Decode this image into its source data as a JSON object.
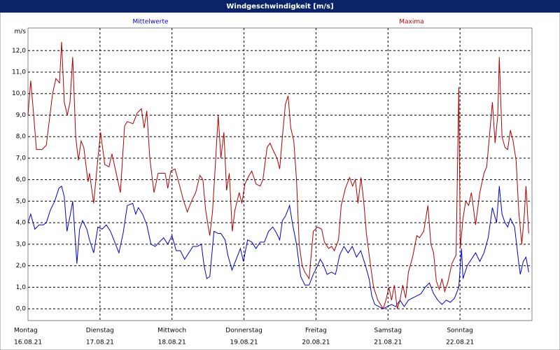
{
  "chart_data": {
    "type": "line",
    "title": "Windgeschwindigkeit [m/s]",
    "ylabel": "m/s",
    "xlim": [
      0,
      168
    ],
    "ylim": [
      -0.55,
      13.05
    ],
    "grid": true,
    "xticks": [
      {
        "value": 0,
        "label": "Montag"
      },
      {
        "value": 24,
        "label": "Dienstag"
      },
      {
        "value": 48,
        "label": "Mittwoch"
      },
      {
        "value": 72,
        "label": "Donnerstag"
      },
      {
        "value": 96,
        "label": "Freitag"
      },
      {
        "value": 120,
        "label": "Samstag"
      },
      {
        "value": 144,
        "label": "Sonntag"
      }
    ],
    "xtick_dates": [
      "16.08.21",
      "17.08.21",
      "18.08.21",
      "19.08.21",
      "20.08.21",
      "21.08.21",
      "22.08.21"
    ],
    "yticks": [
      {
        "value": 0,
        "label": "0,0"
      },
      {
        "value": 1,
        "label": "1,0"
      },
      {
        "value": 2,
        "label": "2,0"
      },
      {
        "value": 3,
        "label": "3,0"
      },
      {
        "value": 4,
        "label": "4,0"
      },
      {
        "value": 5,
        "label": "5,0"
      },
      {
        "value": 6,
        "label": "6,0"
      },
      {
        "value": 7,
        "label": "7,0"
      },
      {
        "value": 8,
        "label": "8,0"
      },
      {
        "value": 9,
        "label": "9,0"
      },
      {
        "value": 10,
        "label": "10,0"
      },
      {
        "value": 11,
        "label": "11,0"
      },
      {
        "value": 12,
        "label": "12,0"
      }
    ],
    "series": [
      {
        "name": "Mittelwerte",
        "color": "#0000cc",
        "x": [
          0,
          0.9,
          2.3,
          3.7,
          5.1,
          6.1,
          7.5,
          8.9,
          10.3,
          11.2,
          12.1,
          13.0,
          14.0,
          14.9,
          16.3,
          17.2,
          18.2,
          19.6,
          20.5,
          21.9,
          23.3,
          24.7,
          26.1,
          27.5,
          28.9,
          30.3,
          31.7,
          33.1,
          34.9,
          35.9,
          36.8,
          38.2,
          39.6,
          41.0,
          42.4,
          43.8,
          45.2,
          46.6,
          48.0,
          49.4,
          50.8,
          52.2,
          53.6,
          55.0,
          56.4,
          57.8,
          58.7,
          59.6,
          60.6,
          62.0,
          63.4,
          64.3,
          65.7,
          66.6,
          68.0,
          69.4,
          70.8,
          71.8,
          73.2,
          74.6,
          76.0,
          77.4,
          78.8,
          80.2,
          81.6,
          82.9,
          83.9,
          84.8,
          85.8,
          87.2,
          88.1,
          89.5,
          90.9,
          92.3,
          93.7,
          95.1,
          96.5,
          97.4,
          98.3,
          99.7,
          101.1,
          102.5,
          103.9,
          105.3,
          106.7,
          108.1,
          109.5,
          110.9,
          112.3,
          113.7,
          114.6,
          115.6,
          117.0,
          118.4,
          119.8,
          121.2,
          122.6,
          124.0,
          125.4,
          126.8,
          128.2,
          129.6,
          131.0,
          132.4,
          133.8,
          135.2,
          136.6,
          138.0,
          139.4,
          140.8,
          142.2,
          143.6,
          144.5,
          145.0,
          146.4,
          147.8,
          149.2,
          150.6,
          152.0,
          153.4,
          154.8,
          156.2,
          157.1,
          158.0,
          159.0,
          159.9,
          160.8,
          162.2,
          163.6,
          164.1,
          165.1,
          166.0,
          166.9
        ],
        "values": [
          4.0,
          4.4,
          3.7,
          3.9,
          3.9,
          4.0,
          4.6,
          5.0,
          5.6,
          5.7,
          5.2,
          3.6,
          4.3,
          5.0,
          2.1,
          3.7,
          4.1,
          3.7,
          3.2,
          2.6,
          3.8,
          3.7,
          3.9,
          3.6,
          3.1,
          2.6,
          3.5,
          4.8,
          4.9,
          4.4,
          4.7,
          4.4,
          3.9,
          3.0,
          2.9,
          3.1,
          3.3,
          3.0,
          3.4,
          2.7,
          2.7,
          2.3,
          2.6,
          2.9,
          2.9,
          3.0,
          2.0,
          1.4,
          1.5,
          3.6,
          3.5,
          3.5,
          3.2,
          2.5,
          1.8,
          2.3,
          2.8,
          2.2,
          3.2,
          3.1,
          2.8,
          3.1,
          3.1,
          3.6,
          3.8,
          3.5,
          3.2,
          4.1,
          4.3,
          4.8,
          4.0,
          3.0,
          1.5,
          1.1,
          1.1,
          1.6,
          2.0,
          2.3,
          2.1,
          1.6,
          1.7,
          1.6,
          2.5,
          2.9,
          2.6,
          2.9,
          2.4,
          2.7,
          2.1,
          1.4,
          0.6,
          0.2,
          0.1,
          0.0,
          0.1,
          0.2,
          0.1,
          0.4,
          0.1,
          0.4,
          0.5,
          0.6,
          0.7,
          1.0,
          1.2,
          0.7,
          0.4,
          0.2,
          0.4,
          0.3,
          0.5,
          1.0,
          2.8,
          1.4,
          2.0,
          2.3,
          2.6,
          2.2,
          2.6,
          3.3,
          4.7,
          4.0,
          5.7,
          4.4,
          4.0,
          3.8,
          4.2,
          3.8,
          2.1,
          1.6,
          2.2,
          2.4,
          1.7
        ]
      },
      {
        "name": "Maxima",
        "color": "#b00000",
        "x": [
          0,
          0.9,
          1.9,
          2.8,
          4.7,
          6.1,
          8.2,
          9.3,
          10.5,
          11.2,
          12.1,
          13.1,
          14.0,
          14.9,
          15.9,
          16.8,
          17.7,
          18.6,
          20.0,
          20.5,
          21.9,
          23.3,
          24.2,
          25.6,
          27.0,
          28.0,
          29.4,
          30.8,
          32.2,
          33.1,
          35.0,
          36.4,
          37.8,
          38.7,
          39.6,
          40.6,
          42.0,
          43.4,
          45.7,
          46.6,
          47.6,
          49.0,
          50.4,
          51.7,
          53.1,
          54.5,
          55.9,
          57.3,
          58.3,
          59.2,
          60.1,
          60.6,
          61.5,
          62.5,
          63.4,
          64.3,
          65.3,
          66.2,
          67.1,
          68.1,
          69.0,
          70.4,
          71.3,
          72.3,
          73.7,
          74.6,
          76.0,
          77.4,
          78.3,
          79.7,
          80.7,
          81.6,
          83.0,
          83.9,
          84.8,
          85.8,
          86.7,
          87.6,
          88.6,
          89.5,
          90.4,
          91.4,
          92.3,
          93.7,
          95.1,
          96.5,
          97.9,
          98.8,
          100.2,
          101.2,
          102.1,
          103.5,
          104.4,
          105.8,
          107.2,
          108.2,
          109.1,
          110.0,
          111.0,
          111.9,
          112.8,
          114.2,
          115.2,
          116.6,
          117.5,
          118.4,
          119.3,
          120.3,
          121.2,
          122.1,
          123.1,
          124.0,
          124.9,
          125.9,
          126.8,
          128.2,
          129.6,
          130.5,
          131.9,
          133.3,
          134.3,
          135.2,
          136.1,
          137.1,
          138.0,
          138.9,
          139.9,
          141.3,
          142.7,
          143.6,
          144.1,
          145.0,
          145.9,
          146.9,
          147.8,
          149.2,
          150.6,
          152.0,
          152.9,
          153.8,
          154.8,
          155.7,
          156.6,
          157.1,
          158.0,
          159.0,
          159.9,
          160.8,
          161.7,
          162.7,
          163.6,
          164.6,
          165.5,
          166.0,
          166.9
        ],
        "values": [
          9.0,
          10.6,
          9.0,
          7.4,
          7.4,
          7.6,
          10.0,
          10.7,
          10.5,
          12.4,
          9.6,
          9.0,
          9.6,
          11.7,
          8.0,
          6.9,
          7.8,
          7.5,
          5.9,
          6.3,
          4.9,
          7.0,
          8.2,
          6.7,
          6.6,
          7.2,
          6.3,
          5.4,
          8.5,
          8.7,
          8.6,
          9.1,
          9.3,
          8.4,
          9.2,
          7.0,
          5.4,
          6.3,
          6.3,
          5.6,
          6.4,
          6.5,
          5.8,
          5.1,
          4.5,
          5.0,
          5.4,
          6.2,
          6.0,
          4.6,
          3.8,
          3.4,
          4.5,
          6.8,
          9.0,
          7.0,
          8.2,
          5.5,
          6.3,
          3.6,
          4.6,
          5.4,
          4.9,
          5.8,
          6.2,
          6.4,
          5.8,
          5.7,
          6.0,
          7.5,
          7.7,
          7.4,
          7.0,
          6.5,
          8.0,
          9.5,
          9.9,
          8.4,
          7.8,
          6.0,
          3.0,
          2.0,
          1.7,
          1.4,
          3.6,
          3.8,
          3.7,
          3.1,
          2.8,
          2.9,
          2.7,
          3.2,
          4.8,
          5.6,
          6.1,
          5.7,
          6.0,
          4.9,
          6.1,
          5.0,
          3.5,
          2.0,
          1.0,
          0.4,
          0.2,
          0.0,
          0.4,
          1.0,
          0.4,
          1.1,
          0.0,
          0.4,
          1.1,
          0.5,
          1.7,
          2.4,
          3.4,
          3.3,
          3.6,
          4.8,
          3.0,
          2.6,
          1.3,
          0.9,
          1.4,
          0.8,
          1.2,
          2.1,
          2.5,
          10.3,
          2.8,
          4.2,
          5.0,
          4.8,
          5.4,
          3.9,
          5.4,
          6.3,
          6.6,
          8.0,
          9.6,
          7.7,
          9.0,
          11.7,
          8.0,
          7.5,
          7.4,
          8.3,
          7.8,
          6.9,
          4.5,
          3.0,
          4.5,
          5.7,
          3.5
        ]
      }
    ]
  }
}
